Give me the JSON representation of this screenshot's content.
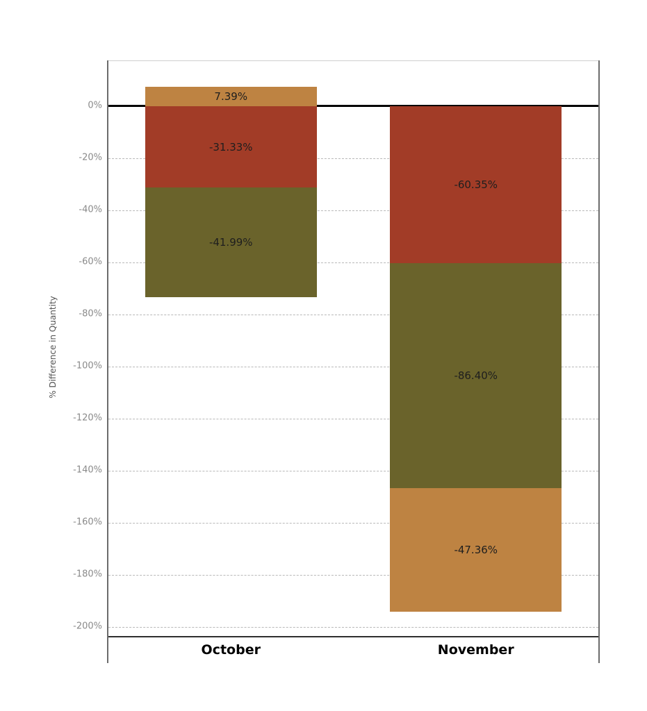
{
  "chart_data": {
    "type": "bar",
    "stacked": true,
    "title": "",
    "xlabel": "",
    "ylabel": "% Difference in Quantity",
    "categories": [
      "October",
      "November"
    ],
    "series": [
      {
        "name": "red",
        "color": "#A23C27",
        "values": [
          -31.33,
          -60.35
        ]
      },
      {
        "name": "olive",
        "color": "#6A632B",
        "values": [
          -41.99,
          -86.4
        ]
      },
      {
        "name": "orange",
        "color": "#BE8342",
        "values": [
          7.39,
          -47.36
        ]
      }
    ],
    "colors": {
      "orange": "#BE8342",
      "red": "#A23C27",
      "olive": "#6A632B"
    },
    "bars": [
      {
        "category": "October",
        "segments": [
          {
            "label": "7.39%",
            "value": 7.39,
            "color_key": "orange"
          },
          {
            "label": "-31.33%",
            "value": -31.33,
            "color_key": "red"
          },
          {
            "label": "-41.99%",
            "value": -41.99,
            "color_key": "olive"
          }
        ]
      },
      {
        "category": "November",
        "segments": [
          {
            "label": "-60.35%",
            "value": -60.35,
            "color_key": "red"
          },
          {
            "label": "-86.40%",
            "value": -86.4,
            "color_key": "olive"
          },
          {
            "label": "-47.36%",
            "value": -47.36,
            "color_key": "orange"
          }
        ]
      }
    ],
    "y_ticks": [
      {
        "label": "0%",
        "value": 0
      },
      {
        "label": "-20%",
        "value": -20
      },
      {
        "label": "-40%",
        "value": -40
      },
      {
        "label": "-60%",
        "value": -60
      },
      {
        "label": "-80%",
        "value": -80
      },
      {
        "label": "-100%",
        "value": -100
      },
      {
        "label": "-120%",
        "value": -120
      },
      {
        "label": "-140%",
        "value": -140
      },
      {
        "label": "-160%",
        "value": -160
      },
      {
        "label": "-180%",
        "value": -180
      },
      {
        "label": "-200%",
        "value": -200
      }
    ],
    "layout": {
      "y_max": 17.3,
      "y_min": -203.5,
      "bar_width_frac": 0.7,
      "grid": "dashed",
      "legend": "none"
    }
  }
}
